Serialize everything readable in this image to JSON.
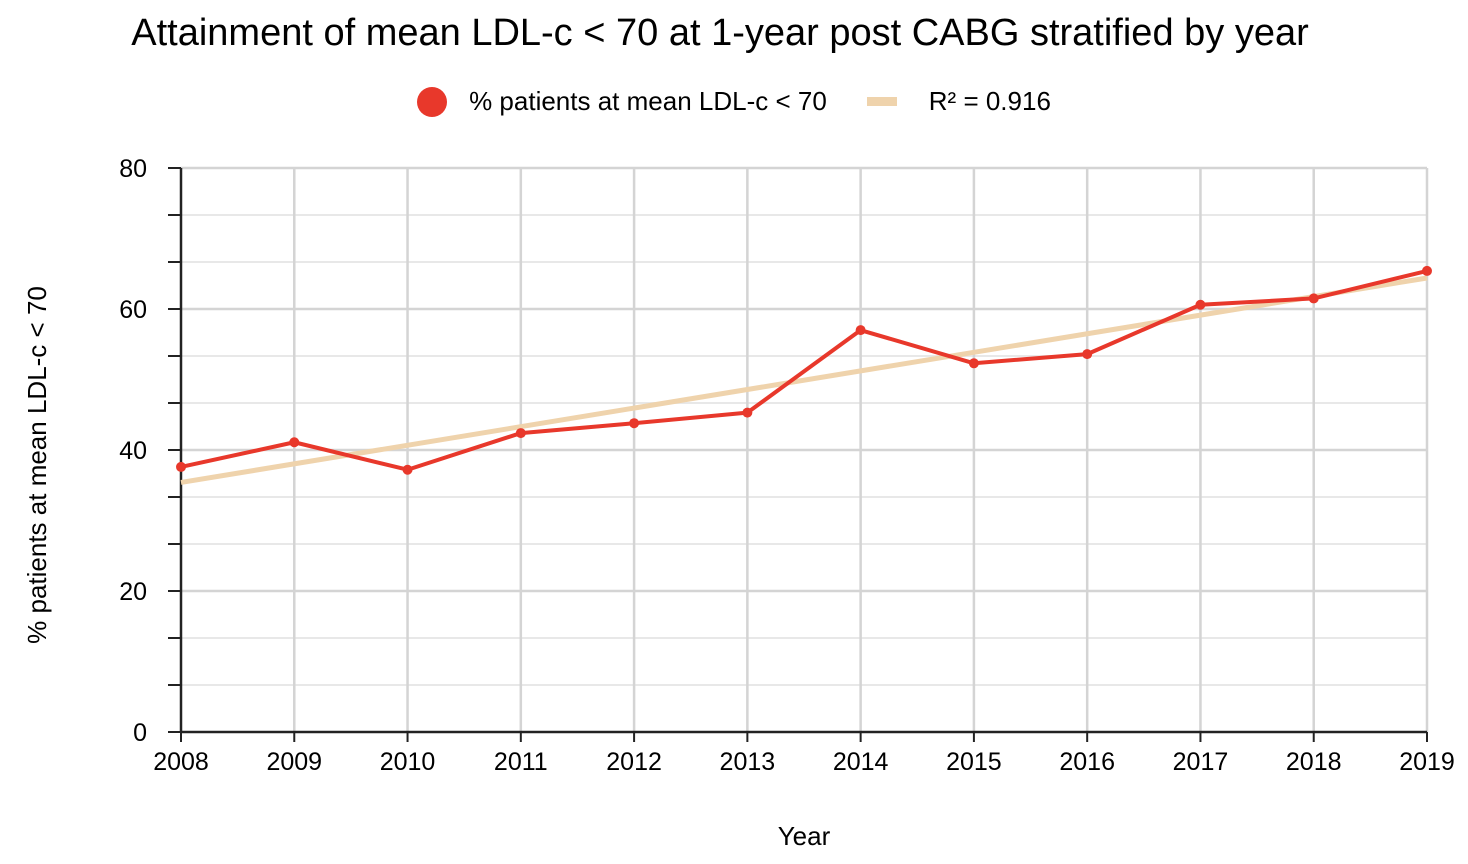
{
  "chart_data": {
    "type": "line",
    "title": "Attainment of mean LDL-c < 70 at 1-year post CABG stratified by year",
    "xlabel": "Year",
    "ylabel": "% patients at mean LDL-c < 70",
    "x": [
      "2008",
      "2009",
      "2010",
      "2011",
      "2012",
      "2013",
      "2014",
      "2015",
      "2016",
      "2017",
      "2018",
      "2019"
    ],
    "ylim": [
      0,
      80
    ],
    "yticks": [
      "0",
      "20",
      "40",
      "60",
      "80"
    ],
    "grid": true,
    "legend_position": "top-center",
    "series": [
      {
        "name": "% patients at mean LDL-c < 70",
        "values": [
          37.6,
          41.1,
          37.2,
          42.4,
          43.8,
          45.3,
          57.0,
          52.3,
          53.6,
          60.6,
          61.5,
          65.4
        ],
        "color": "#e8382b",
        "markers": true
      }
    ],
    "trendline": {
      "name": "R² = 0.916",
      "start": 35.4,
      "end": 64.4,
      "color": "#efd3ac"
    }
  }
}
